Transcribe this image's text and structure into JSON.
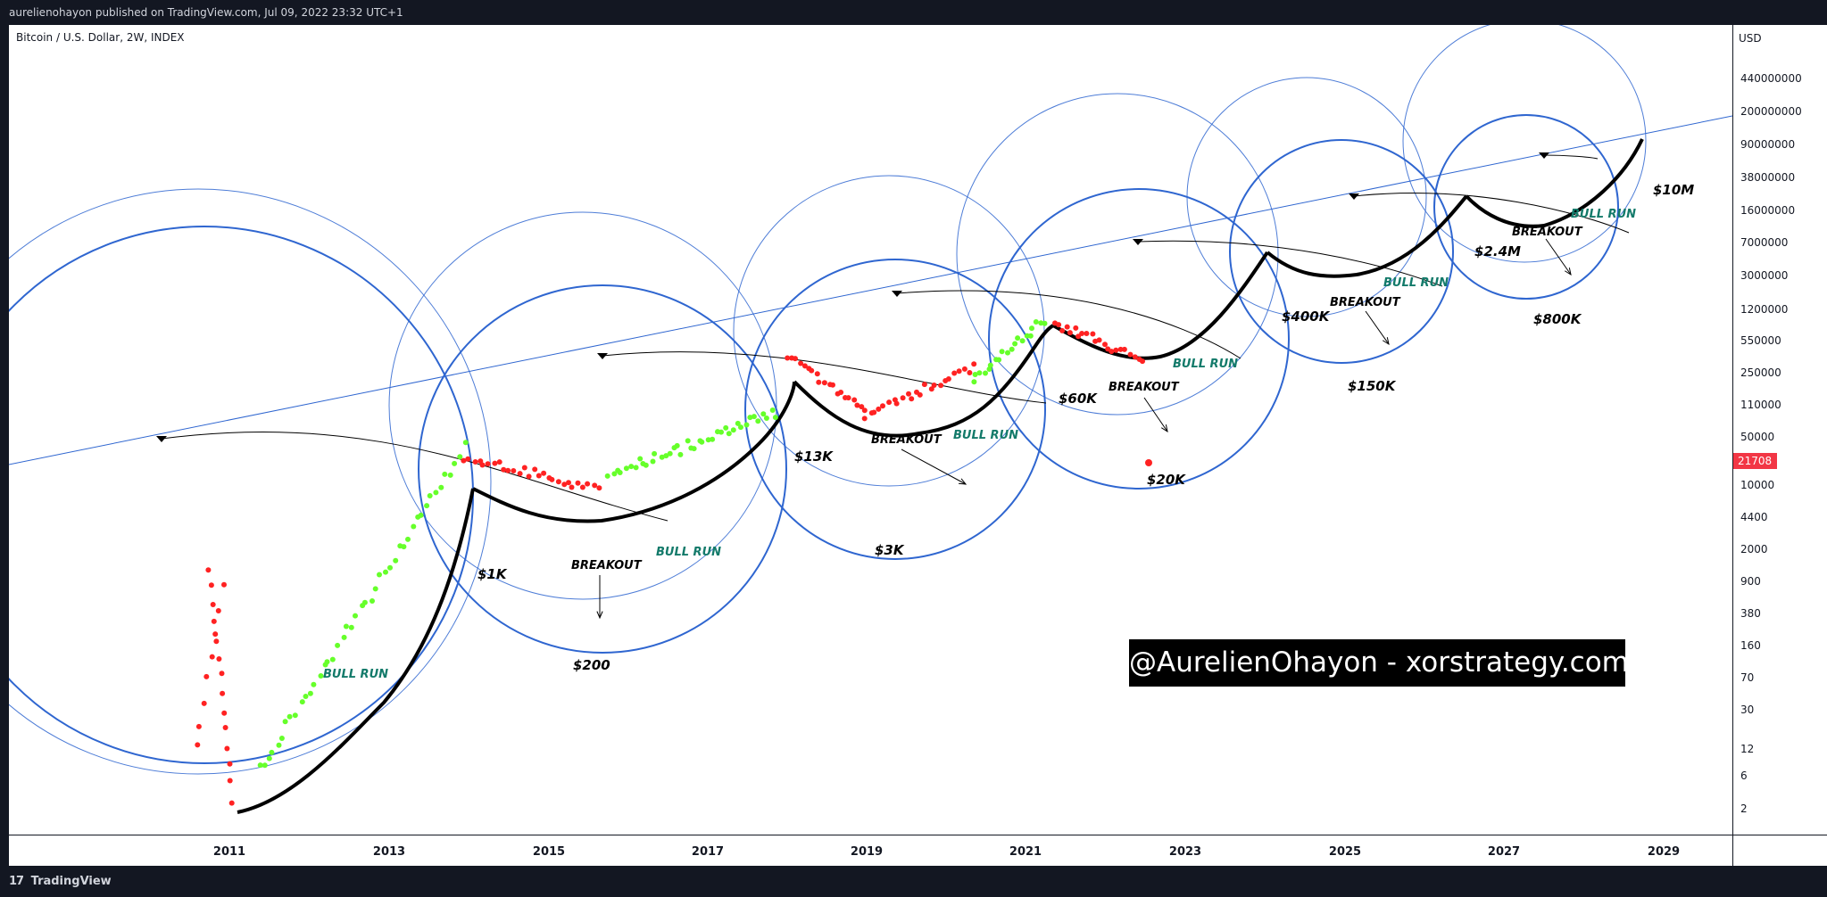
{
  "header": {
    "publisher_line": "aurelienohayon published on TradingView.com, Jul 09, 2022 23:32 UTC+1"
  },
  "symbol_label": "Bitcoin / U.S. Dollar, 2W, INDEX",
  "watermark": "@AurelienOhayon - xorstrategy.com",
  "footer": {
    "logo_mark": "17",
    "logo_text": "TradingView"
  },
  "colors": {
    "circle": "#2f66d0",
    "bull": "#66ff2a",
    "bear": "#ff2222",
    "price_tag_bg": "#f23645",
    "curve": "#000000"
  },
  "chart_data": {
    "type": "scatter",
    "title": "Bitcoin / U.S. Dollar, 2W, INDEX",
    "currency": "USD",
    "interval": "2W",
    "y_scale": "log",
    "xlim": [
      2009.5,
      2030.2
    ],
    "x_ticks": [
      "2011",
      "2013",
      "2015",
      "2017",
      "2019",
      "2021",
      "2023",
      "2025",
      "2027",
      "2029"
    ],
    "y_ticks": [
      "440000000",
      "200000000",
      "90000000",
      "38000000",
      "16000000",
      "7000000",
      "3000000",
      "1200000",
      "550000",
      "250000",
      "110000",
      "50000",
      "10000",
      "4400",
      "2000",
      "900",
      "380",
      "160",
      "70",
      "30",
      "12",
      "6",
      "2"
    ],
    "last_price": "21708",
    "annotations": [
      {
        "label": "$1K",
        "x": 2013.92,
        "y": 1000
      },
      {
        "label": "$200",
        "x": 2015.5,
        "y": 200
      },
      {
        "label": "$13K",
        "x": 2017.95,
        "y": 13000
      },
      {
        "label": "$3K",
        "x": 2018.95,
        "y": 3000
      },
      {
        "label": "$60K",
        "x": 2021.3,
        "y": 60000
      },
      {
        "label": "$20K",
        "x": 2022.55,
        "y": 20000
      },
      {
        "label": "$400K",
        "x": 2024.05,
        "y": 400000
      },
      {
        "label": "$150K",
        "x": 2025.05,
        "y": 150000
      },
      {
        "label": "$2.4M",
        "x": 2026.5,
        "y": 2400000
      },
      {
        "label": "$800K",
        "x": 2027.3,
        "y": 800000
      },
      {
        "label": "$10M",
        "x": 2028.9,
        "y": 10000000
      }
    ],
    "text_labels": [
      {
        "text": "BULL RUN",
        "x": 2011.5,
        "y": 110
      },
      {
        "text": "BULL RUN",
        "x": 2016.2,
        "y": 3000
      },
      {
        "text": "BULL RUN",
        "x": 2019.95,
        "y": 50000
      },
      {
        "text": "BULL RUN",
        "x": 2022.6,
        "y": 180000
      },
      {
        "text": "BULL RUN",
        "x": 2025.3,
        "y": 1500000
      },
      {
        "text": "BULL RUN",
        "x": 2027.75,
        "y": 8000000
      },
      {
        "text": "BREAKOUT",
        "x": 2015.15,
        "y": 2000
      },
      {
        "text": "BREAKOUT",
        "x": 2018.9,
        "y": 30000
      },
      {
        "text": "BREAKOUT",
        "x": 2021.75,
        "y": 100000
      },
      {
        "text": "BREAKOUT",
        "x": 2024.5,
        "y": 800000
      },
      {
        "text": "BREAKOUT",
        "x": 2026.95,
        "y": 4000000
      }
    ],
    "bull_runs_forecast": [
      {
        "from_x": 2010.1,
        "from_y": 5,
        "to_x": 2013.92,
        "to_y": 1000
      },
      {
        "from_x": 2015.7,
        "from_y": 220,
        "to_x": 2017.95,
        "to_y": 13000
      },
      {
        "from_x": 2019.0,
        "from_y": 3200,
        "to_x": 2021.3,
        "to_y": 60000
      },
      {
        "from_x": 2022.6,
        "from_y": 21000,
        "to_x": 2024.05,
        "to_y": 400000
      },
      {
        "from_x": 2025.1,
        "from_y": 160000,
        "to_x": 2026.5,
        "to_y": 2400000
      },
      {
        "from_x": 2027.3,
        "from_y": 820000,
        "to_x": 2028.85,
        "to_y": 9000000
      }
    ]
  }
}
